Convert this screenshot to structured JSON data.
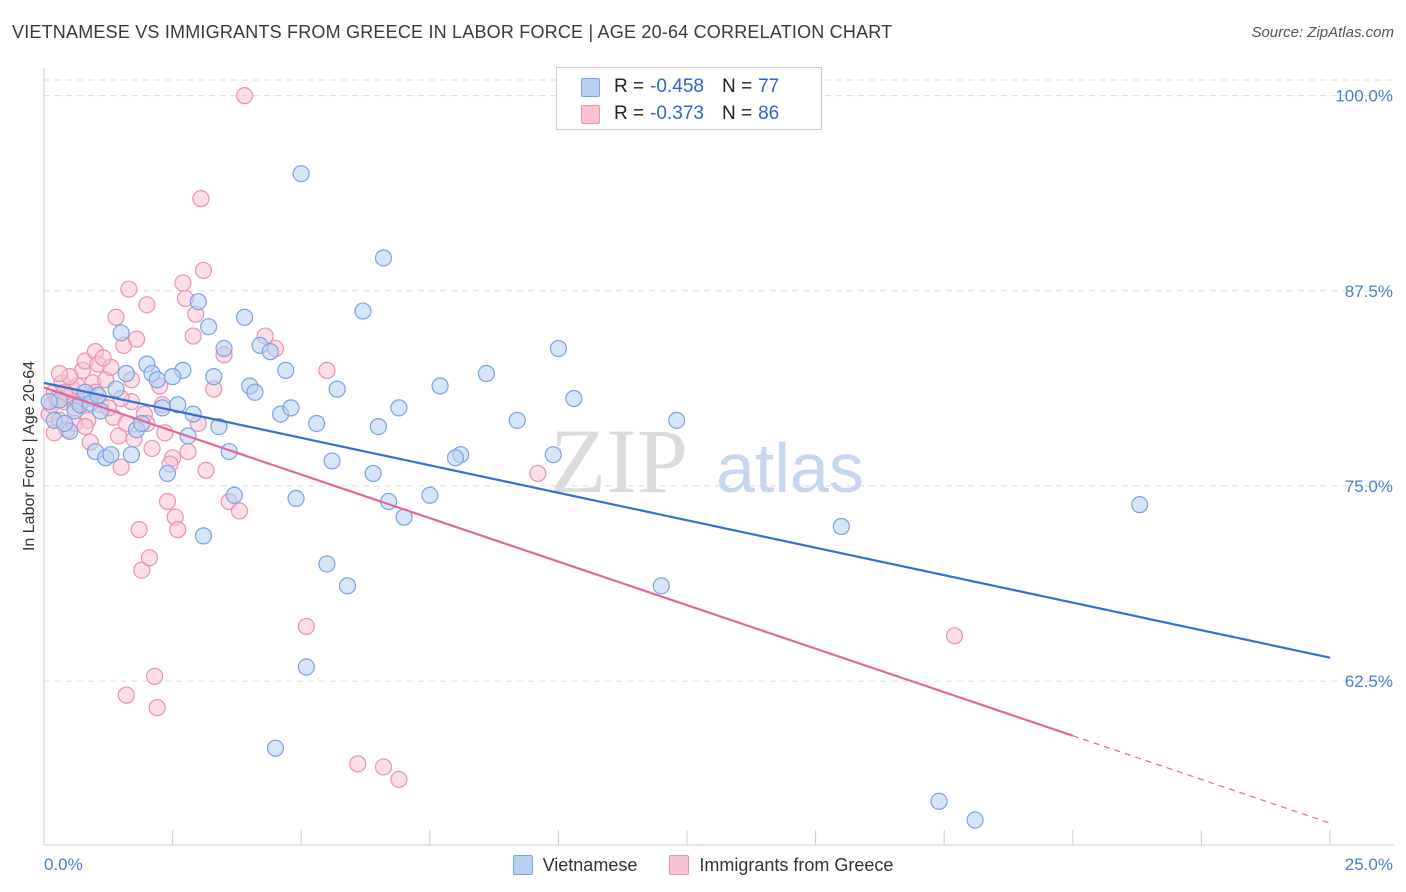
{
  "header": {
    "title": "VIETNAMESE VS IMMIGRANTS FROM GREECE IN LABOR FORCE | AGE 20-64 CORRELATION CHART",
    "source": "Source: ZipAtlas.com"
  },
  "watermark": {
    "zip": "ZIP",
    "atlas": "atlas"
  },
  "stats": [
    {
      "r_label": "R =",
      "r_value": "-0.458",
      "n_label": "N =",
      "n_value": "77"
    },
    {
      "r_label": "R =",
      "r_value": "-0.373",
      "n_label": "N =",
      "n_value": "86"
    }
  ],
  "colors": {
    "blue_fill": "#b7cff3",
    "blue_stroke": "#7aa3e0",
    "blue_line": "#2f72d0",
    "pink_fill": "#f8c2d3",
    "pink_stroke": "#e992b1",
    "pink_line": "#e0699a",
    "tick_label": "#4a7fd0",
    "grid": "#dddddd"
  },
  "chart_data": {
    "type": "scatter",
    "title": "VIETNAMESE VS IMMIGRANTS FROM GREECE IN LABOR FORCE | AGE 20-64 CORRELATION CHART",
    "xlabel": "",
    "ylabel": "In Labor Force | Age 20-64",
    "xlim": [
      0,
      25
    ],
    "ylim": [
      52,
      101
    ],
    "x_tick_labels": [
      "0.0%",
      "25.0%"
    ],
    "y_ticks": [
      100.0,
      87.5,
      75.0,
      62.5
    ],
    "y_tick_labels": [
      "100.0%",
      "87.5%",
      "75.0%",
      "62.5%"
    ],
    "grid": true,
    "legend": [
      "Vietnamese",
      "Immigrants from Greece"
    ],
    "series": [
      {
        "name": "Vietnamese",
        "trend": {
          "x": [
            0.0,
            25.0
          ],
          "y": [
            81.6,
            64.0
          ]
        },
        "points": [
          [
            0.2,
            79.2
          ],
          [
            0.3,
            80.5
          ],
          [
            0.5,
            78.5
          ],
          [
            0.6,
            79.8
          ],
          [
            0.7,
            80.2
          ],
          [
            0.8,
            81.0
          ],
          [
            0.9,
            80.3
          ],
          [
            1.0,
            77.2
          ],
          [
            1.1,
            79.8
          ],
          [
            1.2,
            76.8
          ],
          [
            1.3,
            77.0
          ],
          [
            1.4,
            81.2
          ],
          [
            1.5,
            84.8
          ],
          [
            1.6,
            82.2
          ],
          [
            1.7,
            77.0
          ],
          [
            1.8,
            78.6
          ],
          [
            1.9,
            79.0
          ],
          [
            2.0,
            82.8
          ],
          [
            2.1,
            82.2
          ],
          [
            2.2,
            81.8
          ],
          [
            2.3,
            80.0
          ],
          [
            2.4,
            75.8
          ],
          [
            2.6,
            80.2
          ],
          [
            2.7,
            82.4
          ],
          [
            2.8,
            78.2
          ],
          [
            2.9,
            79.6
          ],
          [
            3.0,
            86.8
          ],
          [
            3.1,
            71.8
          ],
          [
            3.2,
            85.2
          ],
          [
            3.3,
            82.0
          ],
          [
            3.4,
            78.8
          ],
          [
            3.5,
            83.8
          ],
          [
            3.6,
            77.2
          ],
          [
            3.7,
            74.4
          ],
          [
            3.9,
            85.8
          ],
          [
            4.0,
            81.4
          ],
          [
            4.2,
            84.0
          ],
          [
            4.4,
            83.6
          ],
          [
            4.5,
            58.2
          ],
          [
            4.6,
            79.6
          ],
          [
            4.7,
            82.4
          ],
          [
            4.8,
            80.0
          ],
          [
            4.9,
            74.2
          ],
          [
            5.0,
            95.0
          ],
          [
            5.1,
            63.4
          ],
          [
            5.3,
            79.0
          ],
          [
            5.5,
            70.0
          ],
          [
            5.6,
            76.6
          ],
          [
            5.7,
            81.2
          ],
          [
            5.9,
            68.6
          ],
          [
            6.2,
            86.2
          ],
          [
            6.4,
            75.8
          ],
          [
            6.5,
            78.8
          ],
          [
            6.6,
            89.6
          ],
          [
            6.7,
            74.0
          ],
          [
            6.9,
            80.0
          ],
          [
            7.0,
            73.0
          ],
          [
            7.5,
            74.4
          ],
          [
            7.7,
            81.4
          ],
          [
            8.1,
            77.0
          ],
          [
            8.6,
            82.2
          ],
          [
            9.2,
            79.2
          ],
          [
            9.9,
            77.0
          ],
          [
            10.0,
            83.8
          ],
          [
            10.3,
            80.6
          ],
          [
            12.0,
            68.6
          ],
          [
            12.3,
            79.2
          ],
          [
            15.5,
            72.4
          ],
          [
            17.4,
            54.8
          ],
          [
            18.1,
            53.6
          ],
          [
            21.3,
            73.8
          ],
          [
            0.1,
            80.4
          ],
          [
            0.4,
            79.0
          ],
          [
            1.05,
            80.8
          ],
          [
            2.5,
            82.0
          ],
          [
            4.1,
            81.0
          ],
          [
            8.0,
            76.8
          ]
        ]
      },
      {
        "name": "Immigrants from Greece",
        "trend": {
          "x": [
            0.0,
            20.0
          ],
          "y": [
            81.3,
            59.0
          ]
        },
        "trend_dashed": {
          "x": [
            20.0,
            25.0
          ],
          "y": [
            59.0,
            53.4
          ]
        },
        "points": [
          [
            0.1,
            79.6
          ],
          [
            0.15,
            80.2
          ],
          [
            0.2,
            81.0
          ],
          [
            0.25,
            80.6
          ],
          [
            0.3,
            79.2
          ],
          [
            0.35,
            81.6
          ],
          [
            0.4,
            80.4
          ],
          [
            0.45,
            78.6
          ],
          [
            0.5,
            80.8
          ],
          [
            0.55,
            81.2
          ],
          [
            0.6,
            80.0
          ],
          [
            0.65,
            81.4
          ],
          [
            0.7,
            80.4
          ],
          [
            0.75,
            82.4
          ],
          [
            0.8,
            83.0
          ],
          [
            0.85,
            79.2
          ],
          [
            0.9,
            80.6
          ],
          [
            0.95,
            81.6
          ],
          [
            1.0,
            83.6
          ],
          [
            1.05,
            82.8
          ],
          [
            1.1,
            80.2
          ],
          [
            1.2,
            81.8
          ],
          [
            1.3,
            82.6
          ],
          [
            1.35,
            79.4
          ],
          [
            1.4,
            85.8
          ],
          [
            1.45,
            78.2
          ],
          [
            1.5,
            76.2
          ],
          [
            1.55,
            84.0
          ],
          [
            1.6,
            79.0
          ],
          [
            1.65,
            87.6
          ],
          [
            1.7,
            80.4
          ],
          [
            1.75,
            78.0
          ],
          [
            1.8,
            84.4
          ],
          [
            1.85,
            72.2
          ],
          [
            1.9,
            69.6
          ],
          [
            1.95,
            79.6
          ],
          [
            2.0,
            86.6
          ],
          [
            2.05,
            70.4
          ],
          [
            2.1,
            77.4
          ],
          [
            2.15,
            62.8
          ],
          [
            2.2,
            60.8
          ],
          [
            2.3,
            80.2
          ],
          [
            2.35,
            78.4
          ],
          [
            2.4,
            74.0
          ],
          [
            2.5,
            76.8
          ],
          [
            2.55,
            73.0
          ],
          [
            2.6,
            72.2
          ],
          [
            2.7,
            88.0
          ],
          [
            2.75,
            87.0
          ],
          [
            2.8,
            77.2
          ],
          [
            2.9,
            84.6
          ],
          [
            2.95,
            86.0
          ],
          [
            3.0,
            79.0
          ],
          [
            3.05,
            93.4
          ],
          [
            3.1,
            88.8
          ],
          [
            3.15,
            76.0
          ],
          [
            3.3,
            81.2
          ],
          [
            3.5,
            83.4
          ],
          [
            3.6,
            74.0
          ],
          [
            3.8,
            73.4
          ],
          [
            3.9,
            100.0
          ],
          [
            4.3,
            84.6
          ],
          [
            4.5,
            83.8
          ],
          [
            5.1,
            66.0
          ],
          [
            5.5,
            82.4
          ],
          [
            6.1,
            57.2
          ],
          [
            6.6,
            57.0
          ],
          [
            6.9,
            56.2
          ],
          [
            9.6,
            75.8
          ],
          [
            17.7,
            65.4
          ],
          [
            1.6,
            61.6
          ],
          [
            0.5,
            82.0
          ],
          [
            1.0,
            81.0
          ],
          [
            0.2,
            78.4
          ],
          [
            1.25,
            80.0
          ],
          [
            2.25,
            81.4
          ],
          [
            0.6,
            79.0
          ],
          [
            1.15,
            83.2
          ],
          [
            0.9,
            77.8
          ],
          [
            0.3,
            82.2
          ],
          [
            2.45,
            76.4
          ],
          [
            1.7,
            81.8
          ],
          [
            0.4,
            81.0
          ],
          [
            0.8,
            78.8
          ],
          [
            1.5,
            80.6
          ],
          [
            2.0,
            79.0
          ]
        ]
      }
    ]
  },
  "legend": {
    "items": [
      "Vietnamese",
      "Immigrants from Greece"
    ]
  }
}
